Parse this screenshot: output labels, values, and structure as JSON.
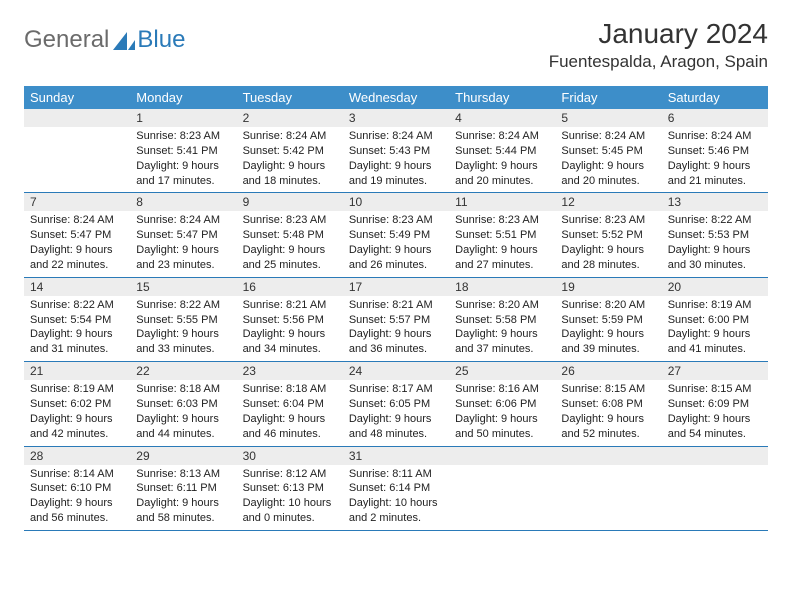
{
  "brand": {
    "left": "General",
    "right": "Blue"
  },
  "title": "January 2024",
  "location": "Fuentespalda, Aragon, Spain",
  "dayNames": [
    "Sunday",
    "Monday",
    "Tuesday",
    "Wednesday",
    "Thursday",
    "Friday",
    "Saturday"
  ],
  "colors": {
    "headerBar": "#3d8ec9",
    "rowDivider": "#2a7ab8",
    "dayNumBg": "#ededed",
    "logoGray": "#6b6b6b",
    "logoBlue": "#2a7ab8"
  },
  "font": {
    "title_pt": 28,
    "location_pt": 17,
    "dayname_pt": 13,
    "body_pt": 11
  },
  "startWeekday": 1,
  "days": [
    {
      "n": 1,
      "sunrise": "8:23 AM",
      "sunset": "5:41 PM",
      "daylight": "9 hours and 17 minutes."
    },
    {
      "n": 2,
      "sunrise": "8:24 AM",
      "sunset": "5:42 PM",
      "daylight": "9 hours and 18 minutes."
    },
    {
      "n": 3,
      "sunrise": "8:24 AM",
      "sunset": "5:43 PM",
      "daylight": "9 hours and 19 minutes."
    },
    {
      "n": 4,
      "sunrise": "8:24 AM",
      "sunset": "5:44 PM",
      "daylight": "9 hours and 20 minutes."
    },
    {
      "n": 5,
      "sunrise": "8:24 AM",
      "sunset": "5:45 PM",
      "daylight": "9 hours and 20 minutes."
    },
    {
      "n": 6,
      "sunrise": "8:24 AM",
      "sunset": "5:46 PM",
      "daylight": "9 hours and 21 minutes."
    },
    {
      "n": 7,
      "sunrise": "8:24 AM",
      "sunset": "5:47 PM",
      "daylight": "9 hours and 22 minutes."
    },
    {
      "n": 8,
      "sunrise": "8:24 AM",
      "sunset": "5:47 PM",
      "daylight": "9 hours and 23 minutes."
    },
    {
      "n": 9,
      "sunrise": "8:23 AM",
      "sunset": "5:48 PM",
      "daylight": "9 hours and 25 minutes."
    },
    {
      "n": 10,
      "sunrise": "8:23 AM",
      "sunset": "5:49 PM",
      "daylight": "9 hours and 26 minutes."
    },
    {
      "n": 11,
      "sunrise": "8:23 AM",
      "sunset": "5:51 PM",
      "daylight": "9 hours and 27 minutes."
    },
    {
      "n": 12,
      "sunrise": "8:23 AM",
      "sunset": "5:52 PM",
      "daylight": "9 hours and 28 minutes."
    },
    {
      "n": 13,
      "sunrise": "8:22 AM",
      "sunset": "5:53 PM",
      "daylight": "9 hours and 30 minutes."
    },
    {
      "n": 14,
      "sunrise": "8:22 AM",
      "sunset": "5:54 PM",
      "daylight": "9 hours and 31 minutes."
    },
    {
      "n": 15,
      "sunrise": "8:22 AM",
      "sunset": "5:55 PM",
      "daylight": "9 hours and 33 minutes."
    },
    {
      "n": 16,
      "sunrise": "8:21 AM",
      "sunset": "5:56 PM",
      "daylight": "9 hours and 34 minutes."
    },
    {
      "n": 17,
      "sunrise": "8:21 AM",
      "sunset": "5:57 PM",
      "daylight": "9 hours and 36 minutes."
    },
    {
      "n": 18,
      "sunrise": "8:20 AM",
      "sunset": "5:58 PM",
      "daylight": "9 hours and 37 minutes."
    },
    {
      "n": 19,
      "sunrise": "8:20 AM",
      "sunset": "5:59 PM",
      "daylight": "9 hours and 39 minutes."
    },
    {
      "n": 20,
      "sunrise": "8:19 AM",
      "sunset": "6:00 PM",
      "daylight": "9 hours and 41 minutes."
    },
    {
      "n": 21,
      "sunrise": "8:19 AM",
      "sunset": "6:02 PM",
      "daylight": "9 hours and 42 minutes."
    },
    {
      "n": 22,
      "sunrise": "8:18 AM",
      "sunset": "6:03 PM",
      "daylight": "9 hours and 44 minutes."
    },
    {
      "n": 23,
      "sunrise": "8:18 AM",
      "sunset": "6:04 PM",
      "daylight": "9 hours and 46 minutes."
    },
    {
      "n": 24,
      "sunrise": "8:17 AM",
      "sunset": "6:05 PM",
      "daylight": "9 hours and 48 minutes."
    },
    {
      "n": 25,
      "sunrise": "8:16 AM",
      "sunset": "6:06 PM",
      "daylight": "9 hours and 50 minutes."
    },
    {
      "n": 26,
      "sunrise": "8:15 AM",
      "sunset": "6:08 PM",
      "daylight": "9 hours and 52 minutes."
    },
    {
      "n": 27,
      "sunrise": "8:15 AM",
      "sunset": "6:09 PM",
      "daylight": "9 hours and 54 minutes."
    },
    {
      "n": 28,
      "sunrise": "8:14 AM",
      "sunset": "6:10 PM",
      "daylight": "9 hours and 56 minutes."
    },
    {
      "n": 29,
      "sunrise": "8:13 AM",
      "sunset": "6:11 PM",
      "daylight": "9 hours and 58 minutes."
    },
    {
      "n": 30,
      "sunrise": "8:12 AM",
      "sunset": "6:13 PM",
      "daylight": "10 hours and 0 minutes."
    },
    {
      "n": 31,
      "sunrise": "8:11 AM",
      "sunset": "6:14 PM",
      "daylight": "10 hours and 2 minutes."
    }
  ],
  "labels": {
    "sunrise": "Sunrise:",
    "sunset": "Sunset:",
    "daylight": "Daylight:"
  }
}
